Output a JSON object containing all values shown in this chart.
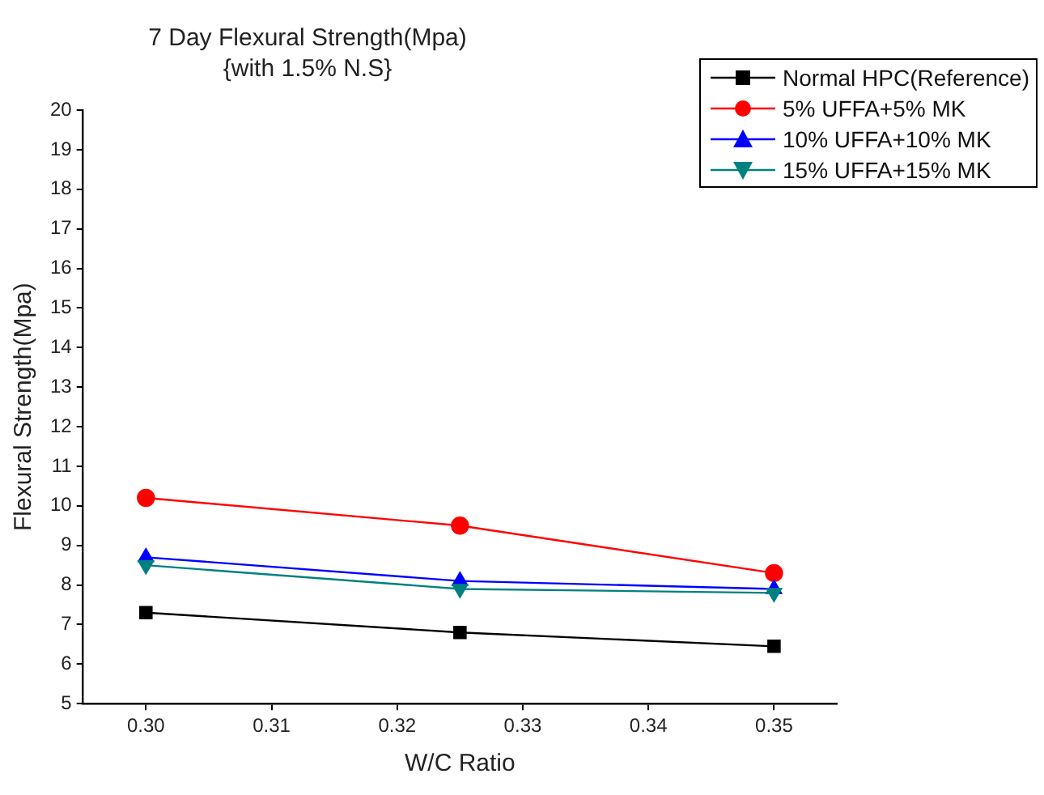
{
  "chart_data": {
    "type": "line",
    "title": "7 Day  Flexural Strength(Mpa)",
    "subtitle": "{with 1.5% N.S}",
    "xlabel": "W/C Ratio",
    "ylabel": "Flexural Strength(Mpa)",
    "x": [
      0.3,
      0.325,
      0.35
    ],
    "series": [
      {
        "name": "Normal HPC(Reference)",
        "color": "#000000",
        "marker": "square",
        "values": [
          7.3,
          6.8,
          6.45
        ]
      },
      {
        "name": "5% UFFA+5% MK",
        "color": "#ff0000",
        "marker": "circle",
        "values": [
          10.2,
          9.5,
          8.3
        ]
      },
      {
        "name": "10% UFFA+10% MK",
        "color": "#0000ff",
        "marker": "triangle",
        "values": [
          8.7,
          8.1,
          7.9
        ]
      },
      {
        "name": "15% UFFA+15% MK",
        "color": "#008080",
        "marker": "triangle-down",
        "values": [
          8.5,
          7.9,
          7.8
        ]
      }
    ],
    "xlim": [
      0.295,
      0.355
    ],
    "xticks": [
      {
        "value": 0.3,
        "label": "0.30"
      },
      0.31,
      0.32,
      0.33,
      0.34,
      {
        "value": 0.35,
        "label": "0.35"
      }
    ],
    "ylim": [
      5,
      20
    ],
    "yticks": [
      5,
      6,
      7,
      8,
      9,
      10,
      11,
      12,
      13,
      14,
      15,
      16,
      17,
      18,
      19,
      20
    ],
    "grid": false,
    "legend": "top right",
    "line_style": "solid"
  }
}
